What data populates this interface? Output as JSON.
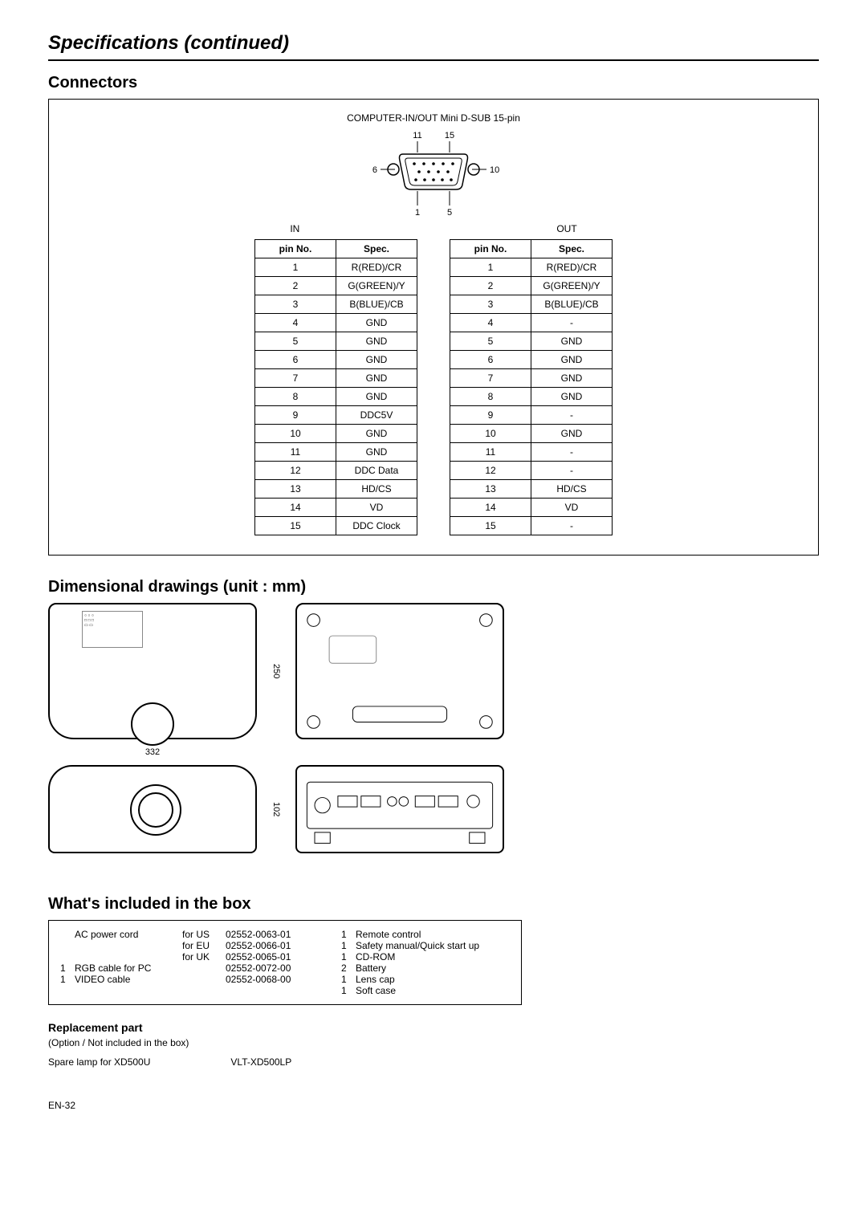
{
  "page": {
    "title": "Specifications (continued)",
    "number": "EN-32"
  },
  "connectors": {
    "heading": "Connectors",
    "label": "COMPUTER-IN/OUT Mini D-SUB 15-pin",
    "pins": {
      "tl": "11",
      "tr": "15",
      "ml": "6",
      "mr": "10",
      "bl": "1",
      "br": "5"
    },
    "inLabel": "IN",
    "outLabel": "OUT",
    "headers": {
      "pin": "pin No.",
      "spec": "Spec."
    },
    "inTable": [
      {
        "pin": "1",
        "spec": "R(RED)/CR"
      },
      {
        "pin": "2",
        "spec": "G(GREEN)/Y"
      },
      {
        "pin": "3",
        "spec": "B(BLUE)/CB"
      },
      {
        "pin": "4",
        "spec": "GND"
      },
      {
        "pin": "5",
        "spec": "GND"
      },
      {
        "pin": "6",
        "spec": "GND"
      },
      {
        "pin": "7",
        "spec": "GND"
      },
      {
        "pin": "8",
        "spec": "GND"
      },
      {
        "pin": "9",
        "spec": "DDC5V"
      },
      {
        "pin": "10",
        "spec": "GND"
      },
      {
        "pin": "11",
        "spec": "GND"
      },
      {
        "pin": "12",
        "spec": "DDC Data"
      },
      {
        "pin": "13",
        "spec": "HD/CS"
      },
      {
        "pin": "14",
        "spec": "VD"
      },
      {
        "pin": "15",
        "spec": "DDC Clock"
      }
    ],
    "outTable": [
      {
        "pin": "1",
        "spec": "R(RED)/CR"
      },
      {
        "pin": "2",
        "spec": "G(GREEN)/Y"
      },
      {
        "pin": "3",
        "spec": "B(BLUE)/CB"
      },
      {
        "pin": "4",
        "spec": "-"
      },
      {
        "pin": "5",
        "spec": "GND"
      },
      {
        "pin": "6",
        "spec": "GND"
      },
      {
        "pin": "7",
        "spec": "GND"
      },
      {
        "pin": "8",
        "spec": "GND"
      },
      {
        "pin": "9",
        "spec": "-"
      },
      {
        "pin": "10",
        "spec": "GND"
      },
      {
        "pin": "11",
        "spec": "-"
      },
      {
        "pin": "12",
        "spec": "-"
      },
      {
        "pin": "13",
        "spec": "HD/CS"
      },
      {
        "pin": "14",
        "spec": "VD"
      },
      {
        "pin": "15",
        "spec": "-"
      }
    ]
  },
  "dimensions": {
    "heading": "Dimensional drawings (unit : mm)",
    "width": "332",
    "depth": "250",
    "height": "102"
  },
  "included": {
    "heading": "What's included in the box",
    "left": [
      {
        "qty": "",
        "name": "AC power cord",
        "region": "for US",
        "part": "02552-0063-01"
      },
      {
        "qty": "",
        "name": "",
        "region": "for EU",
        "part": "02552-0066-01"
      },
      {
        "qty": "",
        "name": "",
        "region": "for UK",
        "part": "02552-0065-01"
      },
      {
        "qty": "1",
        "name": "RGB cable for PC",
        "region": "",
        "part": "02552-0072-00"
      },
      {
        "qty": "1",
        "name": "VIDEO cable",
        "region": "",
        "part": "02552-0068-00"
      }
    ],
    "right": [
      {
        "qty": "1",
        "name": "Remote control"
      },
      {
        "qty": "1",
        "name": "Safety manual/Quick start up"
      },
      {
        "qty": "1",
        "name": "CD-ROM"
      },
      {
        "qty": "2",
        "name": "Battery"
      },
      {
        "qty": "1",
        "name": "Lens cap"
      },
      {
        "qty": "1",
        "name": "Soft case"
      }
    ]
  },
  "replacement": {
    "heading": "Replacement part",
    "note": "(Option / Not included in the box)",
    "item": "Spare lamp for XD500U",
    "part": "VLT-XD500LP"
  }
}
